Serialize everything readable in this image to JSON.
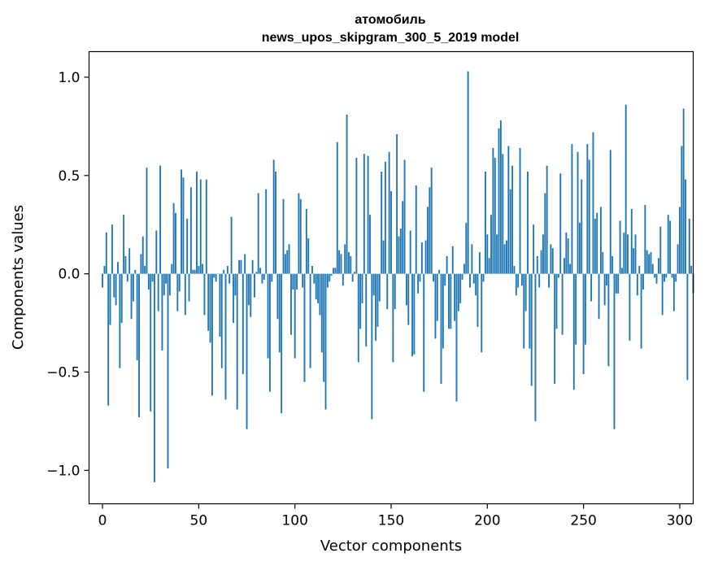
{
  "chart_data": {
    "type": "bar",
    "title": "атомобиль",
    "subtitle": "news_upos_skipgram_300_5_2019 model",
    "xlabel": "Vector components",
    "ylabel": "Components values",
    "xlim": [
      -7,
      307
    ],
    "ylim": [
      -1.17,
      1.13
    ],
    "xticks": [
      0,
      50,
      100,
      150,
      200,
      250,
      300
    ],
    "xtick_labels": [
      "0",
      "50",
      "100",
      "150",
      "200",
      "250",
      "300"
    ],
    "yticks": [
      1.0,
      0.5,
      0.0,
      -0.5,
      -1.0
    ],
    "ytick_labels": [
      "1.0",
      "0.5",
      "0.0",
      "−0.5",
      "−1.0"
    ],
    "bar_color": "#1f77b4",
    "grid": false,
    "series": [
      {
        "name": "атомобиль",
        "values": [
          -0.07,
          0.04,
          0.21,
          -0.67,
          -0.26,
          0.25,
          -0.12,
          -0.16,
          0.06,
          -0.48,
          -0.25,
          0.3,
          0.09,
          -0.04,
          0.13,
          -0.23,
          -0.14,
          0.02,
          -0.44,
          -0.73,
          0.1,
          0.19,
          0.04,
          0.54,
          -0.08,
          -0.7,
          -0.04,
          -1.06,
          0.22,
          -0.19,
          0.55,
          -0.39,
          -0.11,
          -0.05,
          -0.99,
          -0.11,
          0.05,
          0.36,
          0.31,
          -0.19,
          -0.09,
          0.53,
          0.49,
          -0.21,
          0.28,
          -0.14,
          0.44,
          0.02,
          0.02,
          0.52,
          0.04,
          0.48,
          0.05,
          -0.21,
          0.48,
          -0.29,
          -0.35,
          -0.62,
          -0.02,
          -0.04,
          0.0,
          -0.32,
          -0.48,
          0.02,
          -0.64,
          0.04,
          -0.05,
          0.29,
          -0.25,
          -0.11,
          -0.69,
          0.07,
          0.07,
          -0.51,
          0.1,
          -0.79,
          -0.16,
          -0.22,
          0.07,
          -0.12,
          0.01,
          0.41,
          0.03,
          -0.05,
          -0.03,
          0.43,
          -0.43,
          -0.6,
          -0.04,
          0.58,
          0.52,
          -0.23,
          -0.4,
          -0.71,
          0.38,
          0.1,
          0.12,
          0.15,
          -0.31,
          -0.08,
          -0.43,
          -0.08,
          0.41,
          0.38,
          -0.07,
          -0.55,
          0.33,
          0.18,
          -0.48,
          0.04,
          -0.05,
          -0.13,
          -0.15,
          -0.21,
          -0.4,
          -0.55,
          -0.69,
          -0.07,
          -0.04,
          -0.01,
          0.03,
          0.03,
          0.67,
          0.12,
          0.1,
          -0.06,
          0.15,
          0.81,
          0.11,
          0.09,
          -0.04,
          0.01,
          0.59,
          -0.45,
          -0.28,
          -0.15,
          0.61,
          -0.37,
          0.6,
          0.3,
          -0.74,
          -0.11,
          -0.34,
          -0.27,
          -0.14,
          0.52,
          0.17,
          0.57,
          -0.18,
          0.62,
          0.42,
          -0.45,
          -0.18,
          0.71,
          0.19,
          0.23,
          0.37,
          0.58,
          -0.16,
          -0.26,
          0.22,
          -0.42,
          -0.41,
          0.45,
          -0.1,
          -0.04,
          0.16,
          -0.6,
          0.17,
          0.34,
          0.44,
          0.54,
          -0.04,
          -0.33,
          -0.24,
          0.02,
          -0.56,
          -0.38,
          -0.06,
          0.09,
          -0.28,
          -0.28,
          0.14,
          -0.24,
          -0.65,
          -0.19,
          -0.15,
          -0.03,
          0.05,
          0.26,
          1.03,
          -0.07,
          0.15,
          -0.05,
          -0.11,
          -0.27,
          0.11,
          -0.4,
          -0.04,
          0.52,
          0.2,
          0.08,
          0.3,
          0.64,
          0.59,
          0.2,
          0.74,
          0.78,
          0.61,
          0.15,
          0.17,
          0.65,
          0.43,
          0.55,
          0.04,
          -0.11,
          -0.07,
          0.64,
          -0.06,
          -0.38,
          -0.19,
          0.52,
          -0.38,
          -0.57,
          0.25,
          -0.75,
          0.09,
          -0.07,
          0.12,
          0.2,
          0.41,
          0.55,
          -0.07,
          0.15,
          0.13,
          -0.56,
          -0.28,
          -0.02,
          0.51,
          -0.31,
          0.08,
          0.21,
          0.18,
          0.05,
          0.66,
          -0.59,
          -0.36,
          0.62,
          0.26,
          0.48,
          -0.51,
          -0.36,
          0.66,
          0.58,
          -0.14,
          0.72,
          0.28,
          0.31,
          -0.23,
          0.34,
          0.11,
          -0.16,
          -0.06,
          -0.47,
          0.63,
          0.09,
          -0.79,
          -0.1,
          -0.1,
          0.27,
          0.03,
          0.21,
          0.86,
          0.2,
          -0.34,
          0.33,
          0.13,
          0.2,
          -0.11,
          0.04,
          -0.38,
          -0.08,
          0.35,
          0.12,
          0.1,
          0.11,
          0.05,
          -0.02,
          -0.05,
          0.08,
          0.24,
          -0.21,
          -0.04,
          -0.02,
          0.3,
          0.27,
          -0.02,
          -0.19,
          -0.04,
          0.15,
          0.34,
          0.65,
          0.84,
          0.48,
          -0.54,
          0.28,
          0.04,
          -0.1
        ]
      }
    ]
  }
}
